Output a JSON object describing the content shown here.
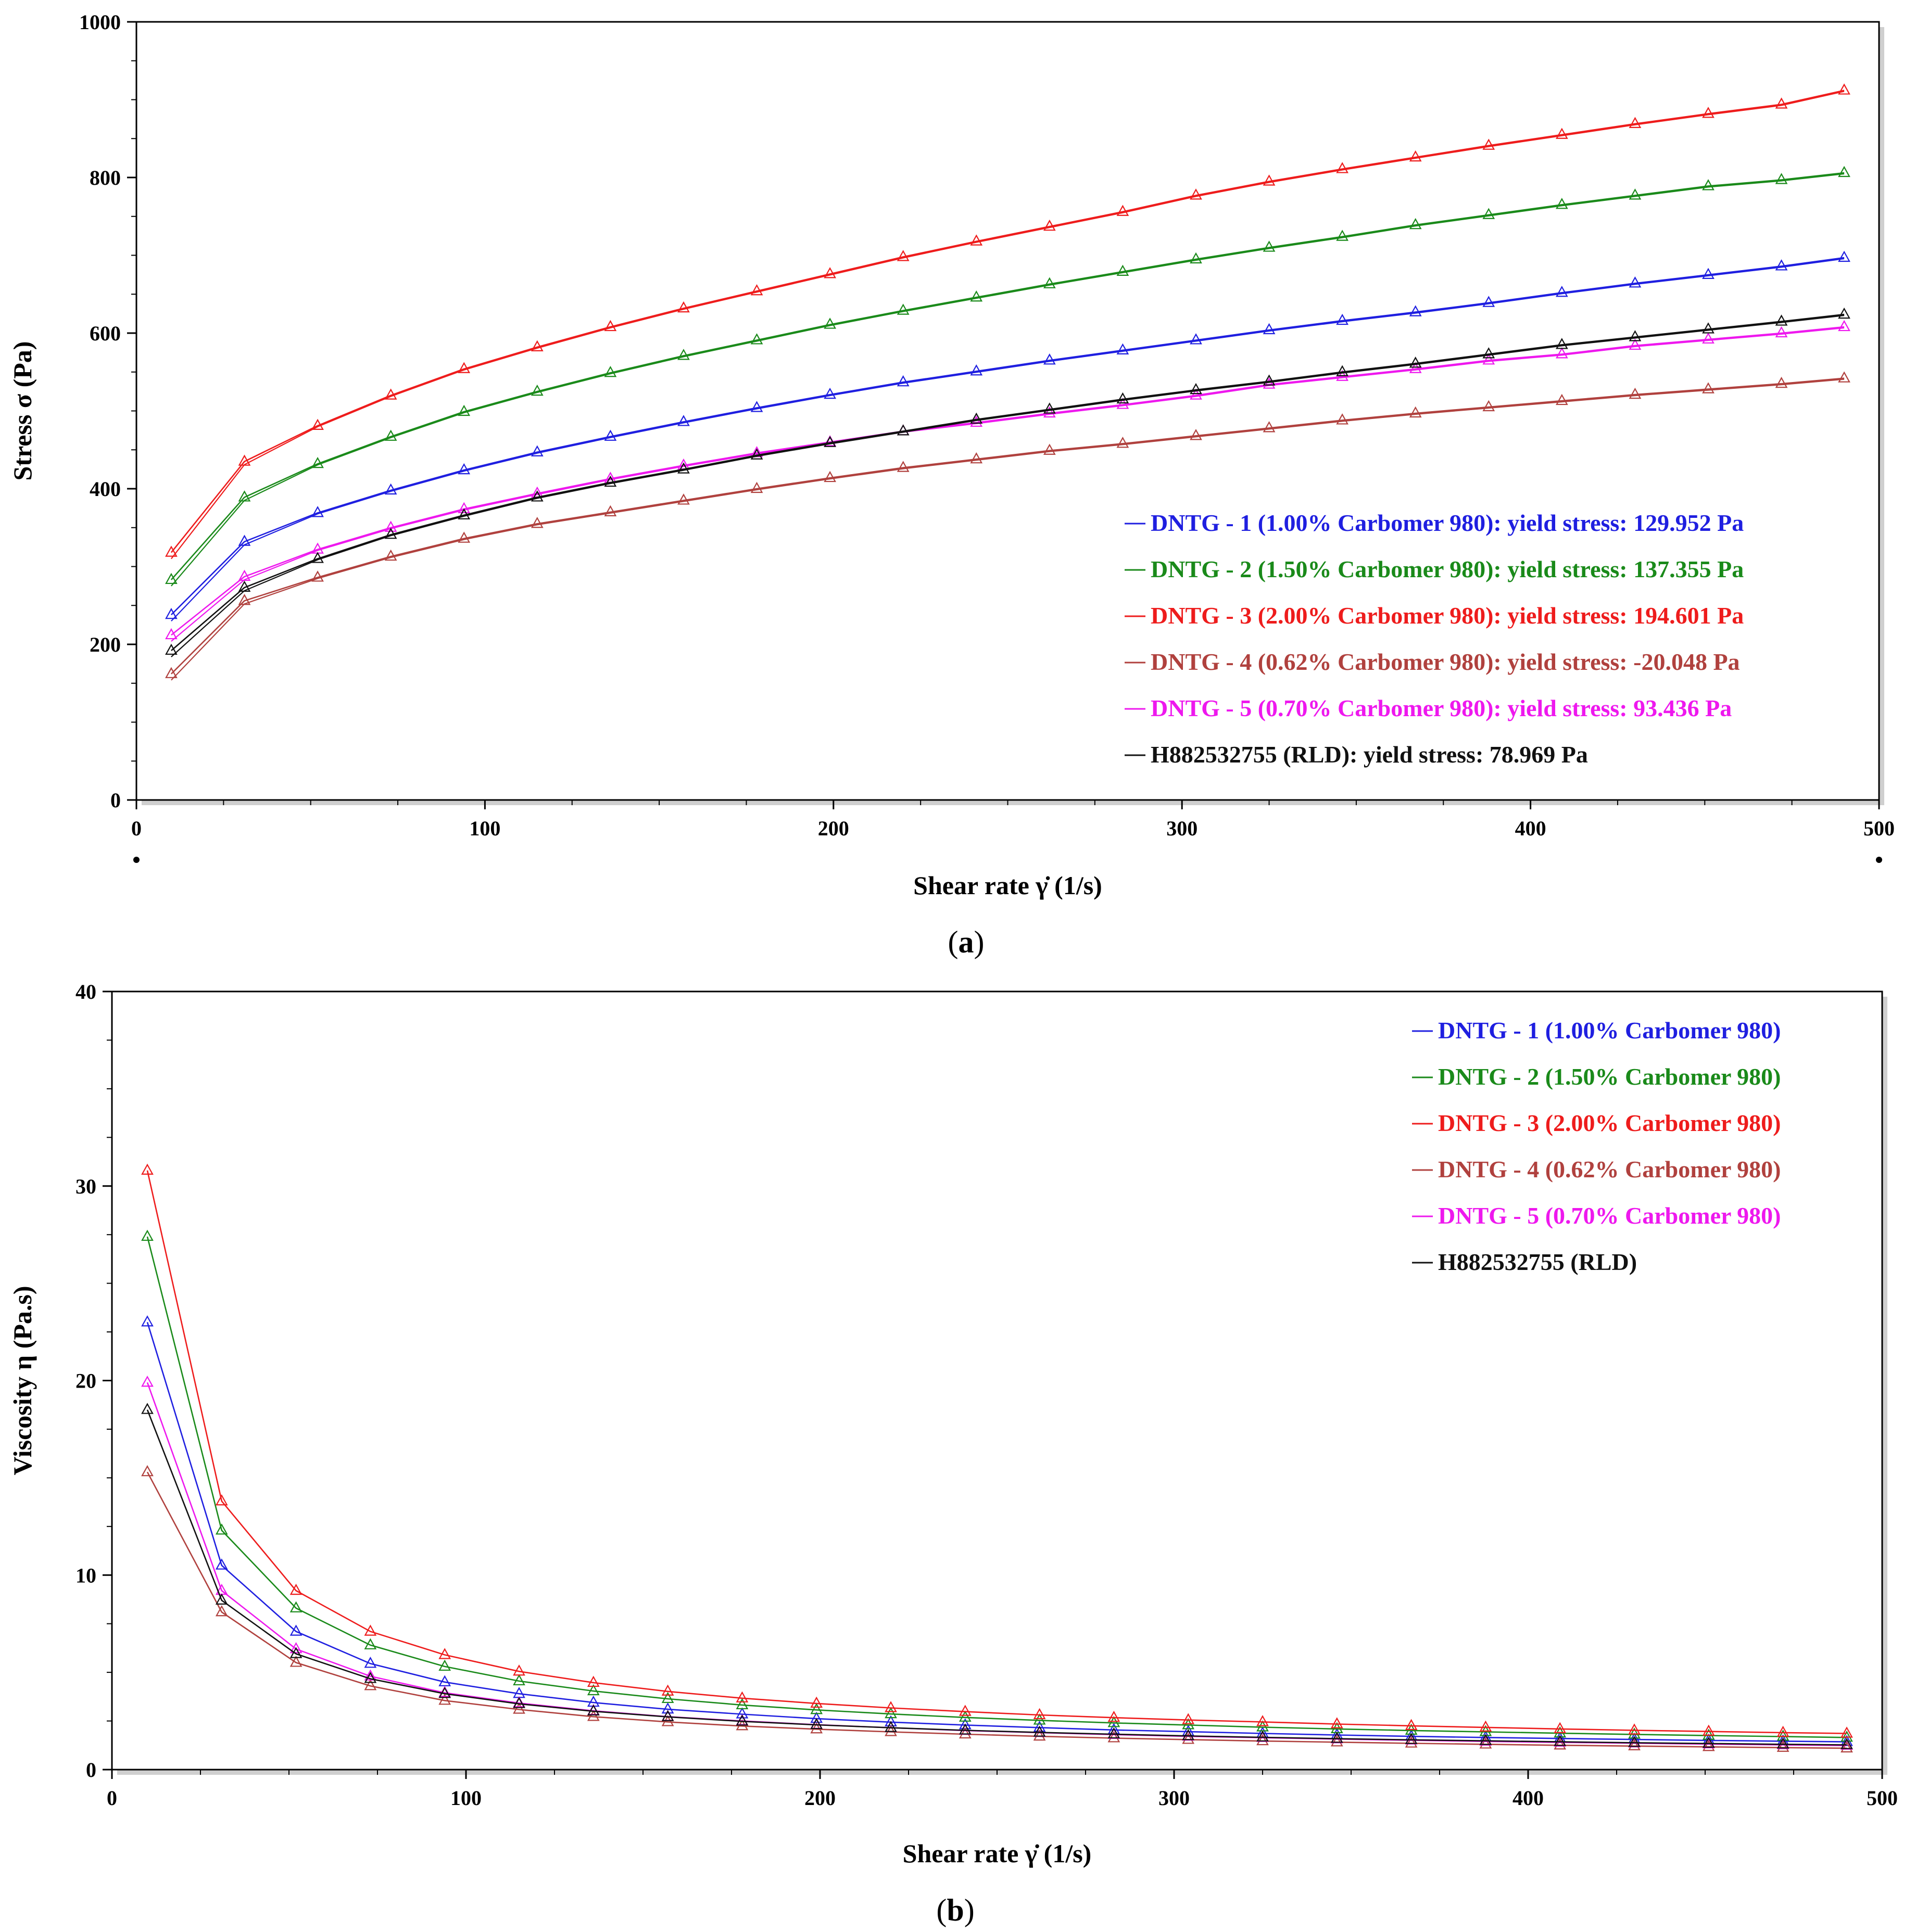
{
  "chart_data": [
    {
      "id": "a",
      "type": "line",
      "panel_label": "a",
      "xlabel": "Shear rate  γ̇  (1/s)",
      "ylabel": "Stress σ (Pa)",
      "xlim": [
        0,
        500
      ],
      "ylim": [
        0,
        1000
      ],
      "xticks": [
        "0",
        "100",
        "200",
        "300",
        "400",
        "500"
      ],
      "yticks": [
        "0",
        "200",
        "400",
        "600",
        "800",
        "1000"
      ],
      "legend_position": "bottom-right",
      "x": [
        10,
        31,
        52,
        73,
        94,
        115,
        136,
        157,
        178,
        199,
        220,
        241,
        262,
        283,
        304,
        325,
        346,
        367,
        388,
        409,
        430,
        451,
        472,
        490
      ],
      "series": [
        {
          "name": "DNTG - 1 (1.00% Carbomer 980): yield stress: 129.952 Pa",
          "color": "#1f1fe0",
          "values": [
            238,
            332,
            369,
            398,
            424,
            447,
            467,
            486,
            504,
            521,
            537,
            551,
            565,
            578,
            591,
            604,
            616,
            627,
            639,
            652,
            664,
            675,
            686,
            697
          ]
        },
        {
          "name": "DNTG - 2 (1.50% Carbomer 980): yield stress: 137.355 Pa",
          "color": "#1a8a1a",
          "values": [
            283,
            389,
            432,
            467,
            499,
            525,
            549,
            571,
            591,
            611,
            629,
            646,
            663,
            679,
            695,
            710,
            724,
            739,
            752,
            765,
            777,
            789,
            797,
            806
          ]
        },
        {
          "name": "DNTG - 3 (2.00% Carbomer 980): yield stress: 194.601 Pa",
          "color": "#ee1c1c",
          "values": [
            318,
            435,
            481,
            520,
            554,
            582,
            608,
            632,
            654,
            676,
            698,
            718,
            737,
            756,
            777,
            795,
            811,
            826,
            841,
            855,
            869,
            882,
            894,
            912
          ]
        },
        {
          "name": "DNTG - 4 (0.62% Carbomer 980): yield stress: -20.048 Pa",
          "color": "#b0413e",
          "values": [
            162,
            256,
            286,
            313,
            336,
            355,
            370,
            385,
            400,
            414,
            427,
            438,
            449,
            458,
            468,
            478,
            488,
            497,
            505,
            513,
            521,
            528,
            535,
            542
          ]
        },
        {
          "name": "DNTG - 5 (0.70% Carbomer 980): yield stress: 93.436 Pa",
          "color": "#ee18ee",
          "values": [
            212,
            287,
            322,
            350,
            374,
            394,
            413,
            430,
            446,
            460,
            474,
            485,
            497,
            508,
            520,
            534,
            544,
            554,
            565,
            573,
            584,
            592,
            600,
            608
          ]
        },
        {
          "name": "H882532755 (RLD): yield stress: 78.969 Pa",
          "color": "#111111",
          "values": [
            192,
            273,
            310,
            341,
            366,
            389,
            408,
            425,
            443,
            459,
            474,
            489,
            502,
            515,
            527,
            538,
            550,
            561,
            573,
            585,
            595,
            605,
            615,
            624
          ]
        }
      ]
    },
    {
      "id": "b",
      "type": "line",
      "panel_label": "b",
      "xlabel": "Shear rate  γ̇  (1/s)",
      "ylabel": "Viscosity η (Pa.s)",
      "xlim": [
        0,
        500
      ],
      "ylim": [
        0,
        40
      ],
      "xticks": [
        "0",
        "100",
        "200",
        "300",
        "400",
        "500"
      ],
      "yticks": [
        "0",
        "10",
        "20",
        "30",
        "40"
      ],
      "legend_position": "top-right",
      "x": [
        10,
        31,
        52,
        73,
        94,
        115,
        136,
        157,
        178,
        199,
        220,
        241,
        262,
        283,
        304,
        325,
        346,
        367,
        388,
        409,
        430,
        451,
        472,
        490
      ],
      "series": [
        {
          "name": "DNTG - 1 (1.00% Carbomer 980)",
          "color": "#1f1fe0",
          "values": [
            23.0,
            10.5,
            7.1,
            5.45,
            4.5,
            3.9,
            3.45,
            3.1,
            2.85,
            2.62,
            2.44,
            2.29,
            2.16,
            2.04,
            1.95,
            1.86,
            1.78,
            1.71,
            1.65,
            1.6,
            1.55,
            1.5,
            1.46,
            1.43
          ]
        },
        {
          "name": "DNTG - 2 (1.50% Carbomer 980)",
          "color": "#1a8a1a",
          "values": [
            27.4,
            12.3,
            8.3,
            6.4,
            5.3,
            4.55,
            4.04,
            3.64,
            3.32,
            3.07,
            2.86,
            2.68,
            2.53,
            2.4,
            2.29,
            2.18,
            2.09,
            2.01,
            1.94,
            1.87,
            1.81,
            1.75,
            1.7,
            1.65
          ]
        },
        {
          "name": "DNTG - 3 (2.00% Carbomer 980)",
          "color": "#ee1c1c",
          "values": [
            30.8,
            13.8,
            9.2,
            7.1,
            5.9,
            5.05,
            4.47,
            4.02,
            3.67,
            3.4,
            3.17,
            2.98,
            2.81,
            2.67,
            2.55,
            2.45,
            2.34,
            2.25,
            2.17,
            2.09,
            2.02,
            1.96,
            1.9,
            1.86
          ]
        },
        {
          "name": "DNTG - 4 (0.62% Carbomer 980)",
          "color": "#b0413e",
          "values": [
            15.3,
            8.1,
            5.5,
            4.3,
            3.55,
            3.09,
            2.72,
            2.45,
            2.24,
            2.08,
            1.94,
            1.82,
            1.71,
            1.62,
            1.54,
            1.47,
            1.41,
            1.35,
            1.3,
            1.25,
            1.21,
            1.17,
            1.13,
            1.1
          ]
        },
        {
          "name": "DNTG - 5 (0.70% Carbomer 980)",
          "color": "#ee18ee",
          "values": [
            19.9,
            9.2,
            6.2,
            4.8,
            3.95,
            3.42,
            3.02,
            2.72,
            2.5,
            2.31,
            2.15,
            2.01,
            1.9,
            1.8,
            1.71,
            1.64,
            1.57,
            1.51,
            1.45,
            1.4,
            1.36,
            1.31,
            1.27,
            1.24
          ]
        },
        {
          "name": "H882532755 (RLD)",
          "color": "#111111",
          "values": [
            18.5,
            8.7,
            5.95,
            4.67,
            3.9,
            3.38,
            3.0,
            2.71,
            2.48,
            2.3,
            2.15,
            2.02,
            1.91,
            1.82,
            1.73,
            1.66,
            1.59,
            1.53,
            1.48,
            1.43,
            1.38,
            1.34,
            1.3,
            1.27
          ]
        }
      ]
    }
  ]
}
